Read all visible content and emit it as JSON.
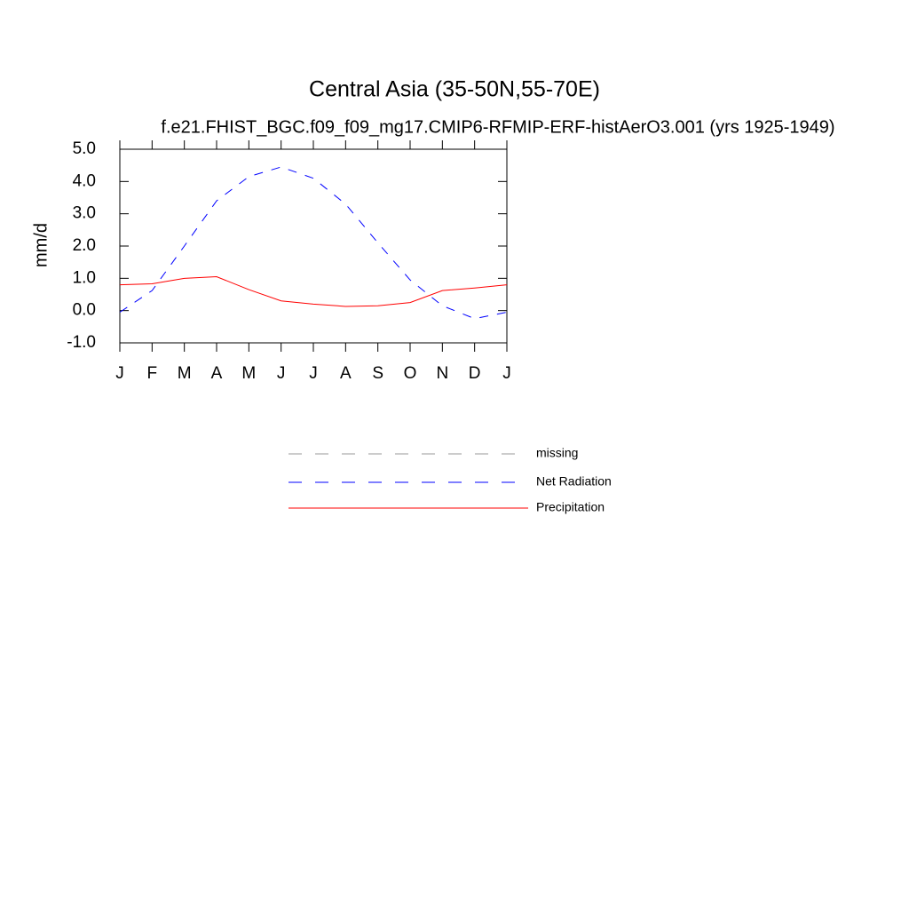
{
  "chart_data": {
    "type": "line",
    "title": "Central Asia (35-50N,55-70E)",
    "subtitle": "f.e21.FHIST_BGC.f09_f09_mg17.CMIP6-RFMIP-ERF-histAerO3.001 (yrs 1925-1949)",
    "ylabel": "mm/d",
    "categories": [
      "J",
      "F",
      "M",
      "A",
      "M",
      "J",
      "J",
      "A",
      "S",
      "O",
      "N",
      "D",
      "J"
    ],
    "ylim": [
      -1,
      5
    ],
    "yticks": [
      {
        "value": -1,
        "label": "-1.0"
      },
      {
        "value": 0,
        "label": "0.0"
      },
      {
        "value": 1,
        "label": "1.0"
      },
      {
        "value": 2,
        "label": "2.0"
      },
      {
        "value": 3,
        "label": "3.0"
      },
      {
        "value": 4,
        "label": "4.0"
      },
      {
        "value": 5,
        "label": "5.0"
      }
    ],
    "series": [
      {
        "name": "missing",
        "color": "#999999",
        "dash": "dashed",
        "values": [
          null,
          null,
          null,
          null,
          null,
          null,
          null,
          null,
          null,
          null,
          null,
          null,
          null
        ]
      },
      {
        "name": "Net Radiation",
        "color": "#0000ff",
        "dash": "dashed",
        "values": [
          -0.05,
          0.62,
          2.0,
          3.4,
          4.15,
          4.45,
          4.1,
          3.3,
          2.1,
          0.95,
          0.15,
          -0.25,
          -0.05
        ]
      },
      {
        "name": "Precipitation",
        "color": "#ff0000",
        "dash": "solid",
        "values": [
          0.8,
          0.83,
          1.0,
          1.05,
          0.65,
          0.3,
          0.2,
          0.13,
          0.15,
          0.25,
          0.62,
          0.7,
          0.8
        ]
      }
    ]
  }
}
